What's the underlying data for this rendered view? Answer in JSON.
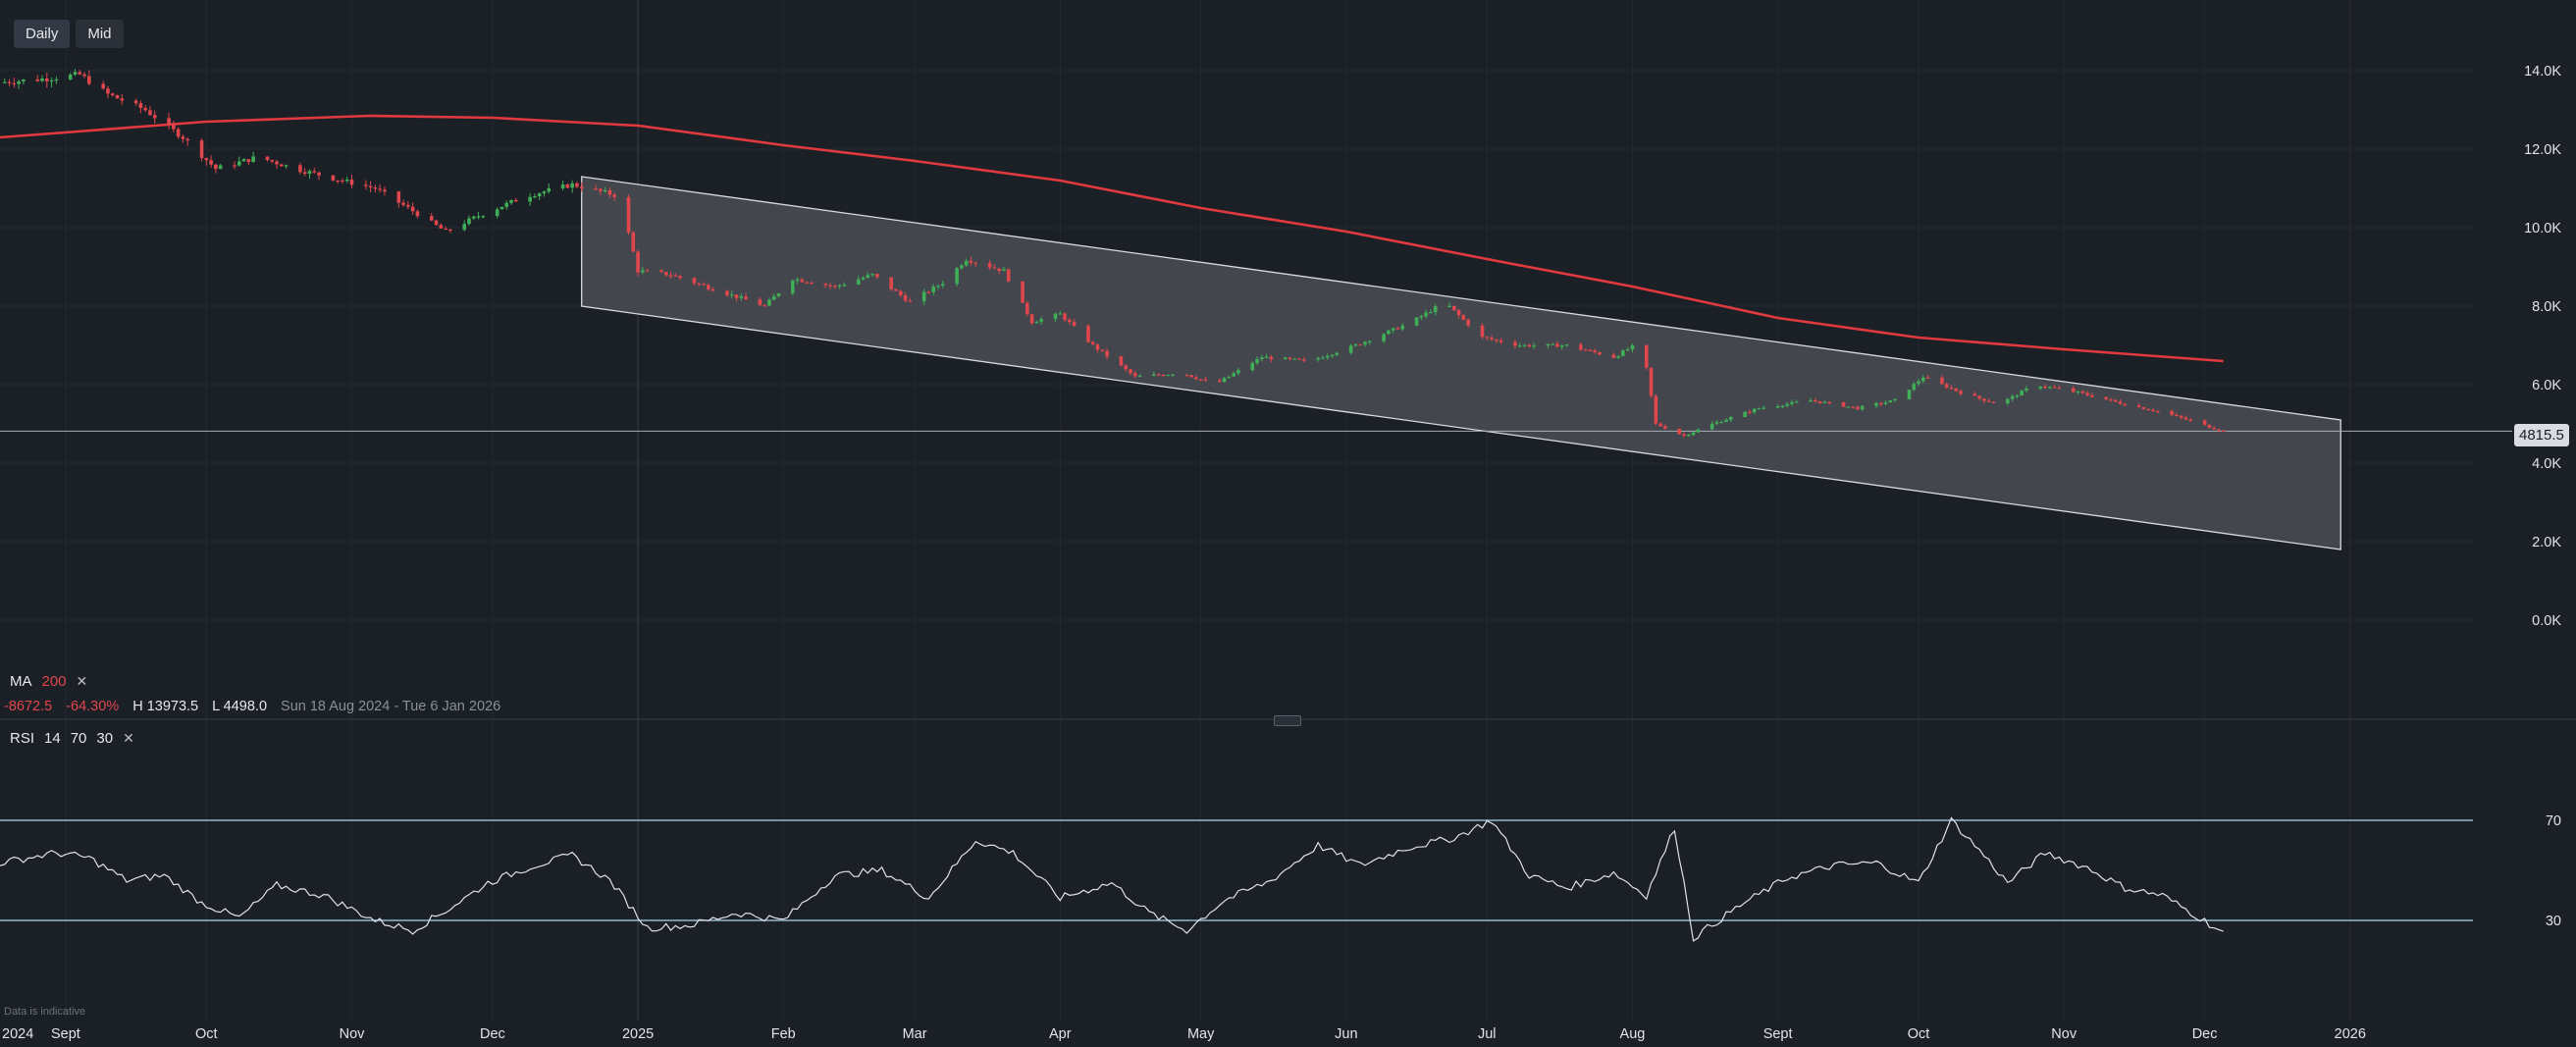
{
  "toolbar": {
    "daily_label": "Daily",
    "mid_label": "Mid"
  },
  "legend": {
    "ma_name": "MA",
    "ma_period": "200",
    "change_abs": "-8672.5",
    "change_pct": "-64.30%",
    "high": "H 13973.5",
    "low": "L 4498.0",
    "range": "Sun 18 Aug 2024 - Tue 6 Jan 2026",
    "rsi_name": "RSI",
    "rsi_p1": "14",
    "rsi_p2": "70",
    "rsi_p3": "30"
  },
  "last_price": "4815.5",
  "disclaimer": "Data is indicative",
  "colors": {
    "up": "#3fae57",
    "down": "#e0474c",
    "ma": "#e0393f",
    "bg": "#1b1f26",
    "channel_fill": "#4a4d53",
    "rsi_line": "#dfe2e6",
    "rsi_level": "#a9d6ef"
  },
  "chart_data": {
    "type": "candlestick",
    "y_axis": {
      "ticks": [
        "14.0K",
        "12.0K",
        "10.0K",
        "8.0K",
        "6.0K",
        "4.0K",
        "2.0K",
        "0.0K"
      ],
      "range": [
        -1500,
        15500
      ]
    },
    "x_axis": {
      "labels": [
        "2024",
        "Sept",
        "Oct",
        "Nov",
        "Dec",
        "2025",
        "Feb",
        "Mar",
        "Apr",
        "May",
        "Jun",
        "Jul",
        "Aug",
        "Sept",
        "Oct",
        "Nov",
        "Dec",
        "2026"
      ],
      "start": "2024-08-18",
      "end": "2026-01-06"
    },
    "price_keypoints": [
      [
        "2024-08-18",
        13700
      ],
      [
        "2024-08-28",
        13800
      ],
      [
        "2024-09-04",
        13900
      ],
      [
        "2024-09-10",
        13400
      ],
      [
        "2024-09-18",
        13000
      ],
      [
        "2024-09-26",
        12300
      ],
      [
        "2024-10-03",
        11500
      ],
      [
        "2024-10-12",
        11800
      ],
      [
        "2024-10-20",
        11500
      ],
      [
        "2024-10-30",
        11200
      ],
      [
        "2024-11-06",
        11000
      ],
      [
        "2024-11-13",
        10500
      ],
      [
        "2024-11-21",
        9900
      ],
      [
        "2024-11-28",
        10300
      ],
      [
        "2024-12-08",
        10800
      ],
      [
        "2024-12-18",
        11100
      ],
      [
        "2024-12-28",
        10800
      ],
      [
        "2025-01-01",
        8900
      ],
      [
        "2025-01-08",
        8800
      ],
      [
        "2025-01-18",
        8400
      ],
      [
        "2025-01-28",
        8000
      ],
      [
        "2025-02-03",
        8700
      ],
      [
        "2025-02-12",
        8500
      ],
      [
        "2025-02-20",
        8800
      ],
      [
        "2025-02-28",
        8100
      ],
      [
        "2025-03-07",
        8600
      ],
      [
        "2025-03-12",
        9200
      ],
      [
        "2025-03-20",
        8900
      ],
      [
        "2025-03-26",
        7600
      ],
      [
        "2025-04-01",
        7800
      ],
      [
        "2025-04-08",
        7000
      ],
      [
        "2025-04-17",
        6200
      ],
      [
        "2025-04-27",
        6300
      ],
      [
        "2025-05-04",
        6000
      ],
      [
        "2025-05-14",
        6700
      ],
      [
        "2025-05-24",
        6600
      ],
      [
        "2025-06-03",
        7000
      ],
      [
        "2025-06-15",
        7600
      ],
      [
        "2025-06-22",
        8100
      ],
      [
        "2025-06-30",
        7200
      ],
      [
        "2025-07-08",
        7000
      ],
      [
        "2025-07-18",
        7000
      ],
      [
        "2025-07-28",
        6700
      ],
      [
        "2025-08-03",
        7100
      ],
      [
        "2025-08-06",
        5000
      ],
      [
        "2025-08-12",
        4700
      ],
      [
        "2025-08-18",
        5000
      ],
      [
        "2025-08-28",
        5400
      ],
      [
        "2025-09-08",
        5600
      ],
      [
        "2025-09-18",
        5400
      ],
      [
        "2025-09-26",
        5600
      ],
      [
        "2025-10-02",
        6200
      ],
      [
        "2025-10-10",
        5800
      ],
      [
        "2025-10-18",
        5500
      ],
      [
        "2025-10-26",
        6000
      ],
      [
        "2025-11-04",
        5800
      ],
      [
        "2025-11-14",
        5500
      ],
      [
        "2025-11-22",
        5300
      ],
      [
        "2025-11-30",
        5000
      ],
      [
        "2025-12-05",
        4815
      ]
    ],
    "ma_200": [
      [
        "2024-08-18",
        12300
      ],
      [
        "2024-10-01",
        12700
      ],
      [
        "2024-11-05",
        12850
      ],
      [
        "2024-12-01",
        12800
      ],
      [
        "2025-01-01",
        12600
      ],
      [
        "2025-02-01",
        12100
      ],
      [
        "2025-03-01",
        11700
      ],
      [
        "2025-04-01",
        11200
      ],
      [
        "2025-05-01",
        10500
      ],
      [
        "2025-06-01",
        9900
      ],
      [
        "2025-07-01",
        9200
      ],
      [
        "2025-08-01",
        8500
      ],
      [
        "2025-09-01",
        7700
      ],
      [
        "2025-10-01",
        7200
      ],
      [
        "2025-11-01",
        6900
      ],
      [
        "2025-12-05",
        6600
      ]
    ],
    "channel": {
      "upper": [
        [
          "2024-12-20",
          11300
        ],
        [
          "2025-12-30",
          5100
        ]
      ],
      "lower": [
        [
          "2024-12-20",
          8000
        ],
        [
          "2025-12-30",
          1800
        ]
      ]
    },
    "last_price": 4815.5,
    "rsi": {
      "levels": [
        70,
        30
      ],
      "keypoints": [
        [
          "2024-08-18",
          53
        ],
        [
          "2024-08-30",
          57
        ],
        [
          "2024-09-06",
          55
        ],
        [
          "2024-09-14",
          46
        ],
        [
          "2024-09-22",
          48
        ],
        [
          "2024-09-30",
          37
        ],
        [
          "2024-10-08",
          31
        ],
        [
          "2024-10-16",
          44
        ],
        [
          "2024-10-26",
          40
        ],
        [
          "2024-11-06",
          30
        ],
        [
          "2024-11-14",
          26
        ],
        [
          "2024-11-22",
          35
        ],
        [
          "2024-11-30",
          45
        ],
        [
          "2024-12-10",
          52
        ],
        [
          "2024-12-18",
          56
        ],
        [
          "2024-12-26",
          46
        ],
        [
          "2025-01-03",
          27
        ],
        [
          "2025-01-12",
          28
        ],
        [
          "2025-01-22",
          33
        ],
        [
          "2025-02-01",
          30
        ],
        [
          "2025-02-12",
          48
        ],
        [
          "2025-02-22",
          50
        ],
        [
          "2025-03-04",
          39
        ],
        [
          "2025-03-14",
          62
        ],
        [
          "2025-03-22",
          57
        ],
        [
          "2025-04-01",
          39
        ],
        [
          "2025-04-12",
          45
        ],
        [
          "2025-04-20",
          33
        ],
        [
          "2025-04-28",
          26
        ],
        [
          "2025-05-06",
          38
        ],
        [
          "2025-05-16",
          46
        ],
        [
          "2025-05-26",
          60
        ],
        [
          "2025-06-04",
          52
        ],
        [
          "2025-06-14",
          59
        ],
        [
          "2025-06-24",
          63
        ],
        [
          "2025-07-02",
          70
        ],
        [
          "2025-07-10",
          48
        ],
        [
          "2025-07-18",
          43
        ],
        [
          "2025-07-28",
          49
        ],
        [
          "2025-08-04",
          40
        ],
        [
          "2025-08-10",
          67
        ],
        [
          "2025-08-14",
          23
        ],
        [
          "2025-08-24",
          36
        ],
        [
          "2025-09-03",
          47
        ],
        [
          "2025-09-13",
          52
        ],
        [
          "2025-09-22",
          53
        ],
        [
          "2025-10-01",
          45
        ],
        [
          "2025-10-08",
          70
        ],
        [
          "2025-10-14",
          58
        ],
        [
          "2025-10-20",
          45
        ],
        [
          "2025-10-28",
          57
        ],
        [
          "2025-11-06",
          51
        ],
        [
          "2025-11-14",
          43
        ],
        [
          "2025-11-22",
          40
        ],
        [
          "2025-11-30",
          31
        ],
        [
          "2025-12-05",
          25
        ]
      ]
    }
  }
}
